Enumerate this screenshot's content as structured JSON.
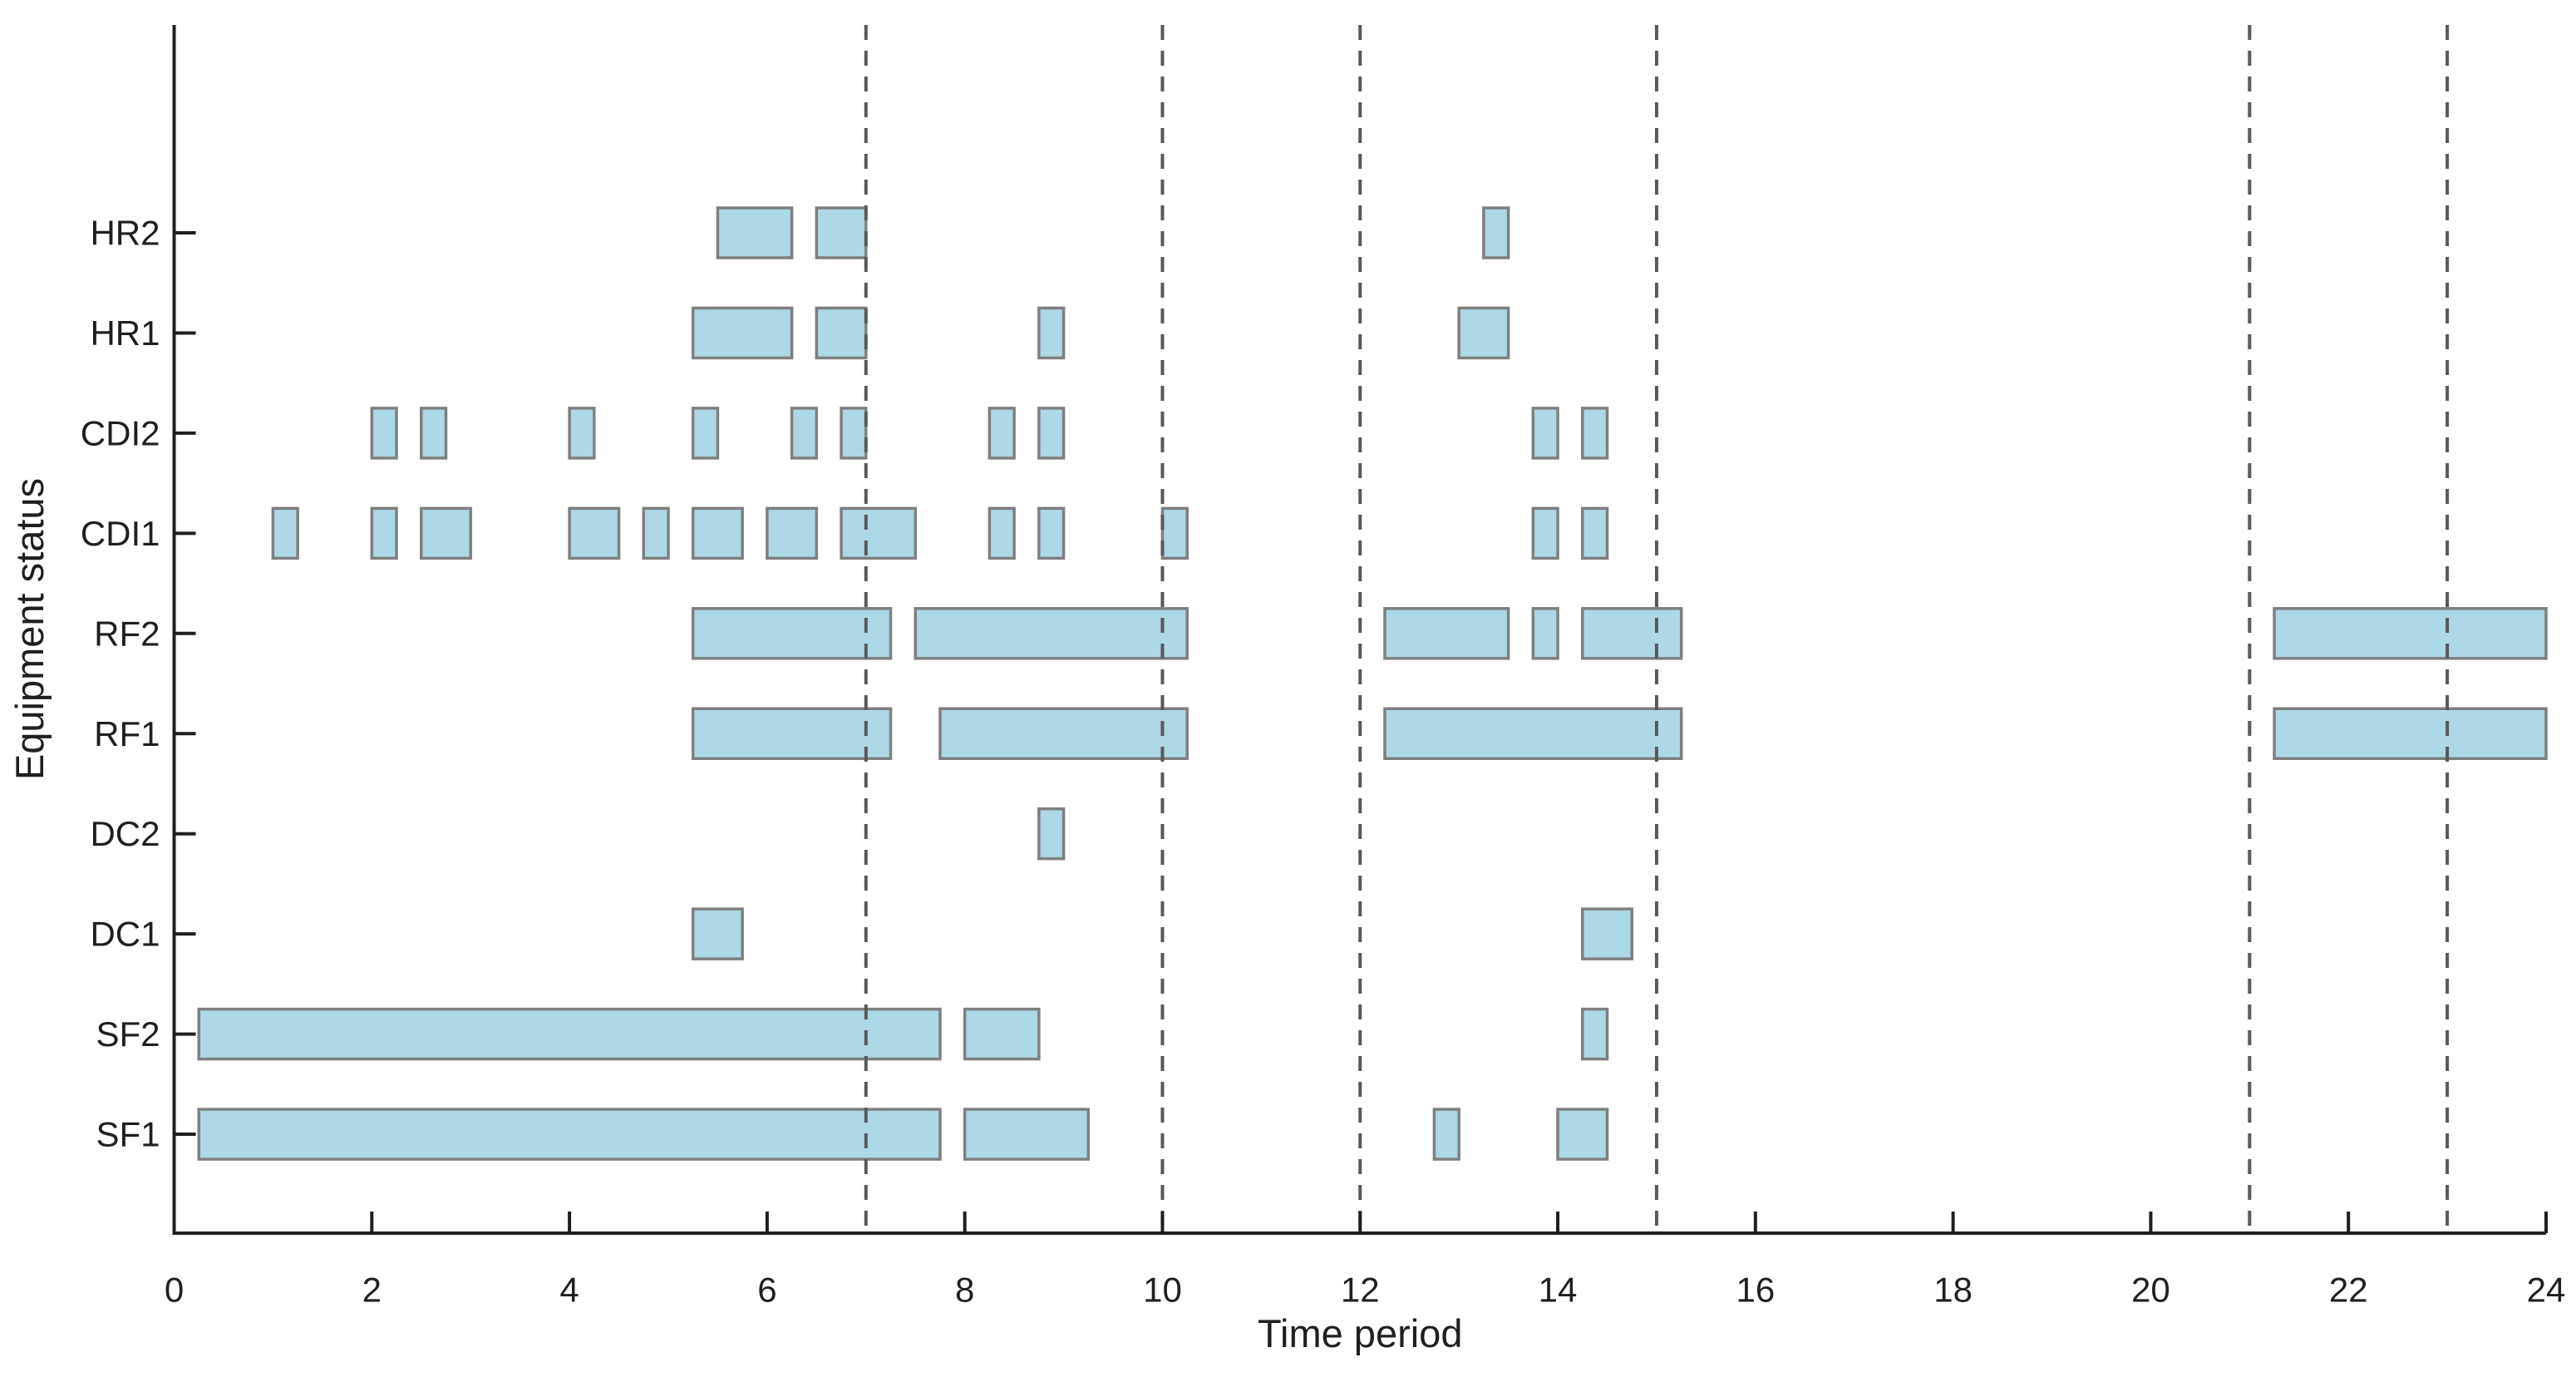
{
  "chart_data": {
    "type": "bar",
    "subtype": "gantt-equipment-schedule",
    "xlabel": "Time period",
    "ylabel": "Equipment status",
    "xlim": [
      0,
      24
    ],
    "x_ticks": [
      0,
      2,
      4,
      6,
      8,
      10,
      12,
      14,
      16,
      18,
      20,
      22,
      24
    ],
    "grid": "off",
    "legend": "none",
    "categories_top_to_bottom": [
      "HR2",
      "HR1",
      "CDI2",
      "CDI1",
      "RF2",
      "RF1",
      "DC2",
      "DC1",
      "SF2",
      "SF1"
    ],
    "dashed_vlines_x": [
      7,
      10,
      12,
      15,
      21,
      23
    ],
    "series": [
      {
        "name": "HR2",
        "intervals": [
          [
            5.5,
            6.25
          ],
          [
            6.5,
            7.0
          ],
          [
            13.25,
            13.5
          ]
        ]
      },
      {
        "name": "HR1",
        "intervals": [
          [
            5.25,
            6.25
          ],
          [
            6.5,
            7.0
          ],
          [
            8.75,
            9.0
          ],
          [
            13.0,
            13.5
          ]
        ]
      },
      {
        "name": "CDI2",
        "intervals": [
          [
            2.0,
            2.25
          ],
          [
            2.5,
            2.75
          ],
          [
            4.0,
            4.25
          ],
          [
            5.25,
            5.5
          ],
          [
            6.25,
            6.5
          ],
          [
            6.75,
            7.0
          ],
          [
            8.25,
            8.5
          ],
          [
            8.75,
            9.0
          ],
          [
            13.75,
            14.0
          ],
          [
            14.25,
            14.5
          ]
        ]
      },
      {
        "name": "CDI1",
        "intervals": [
          [
            1.0,
            1.25
          ],
          [
            2.0,
            2.25
          ],
          [
            2.5,
            3.0
          ],
          [
            4.0,
            4.5
          ],
          [
            4.75,
            5.0
          ],
          [
            5.25,
            5.75
          ],
          [
            6.0,
            6.5
          ],
          [
            6.75,
            7.5
          ],
          [
            8.25,
            8.5
          ],
          [
            8.75,
            9.0
          ],
          [
            10.0,
            10.25
          ],
          [
            13.75,
            14.0
          ],
          [
            14.25,
            14.5
          ]
        ]
      },
      {
        "name": "RF2",
        "intervals": [
          [
            5.25,
            7.25
          ],
          [
            7.5,
            10.25
          ],
          [
            12.25,
            13.5
          ],
          [
            13.75,
            14.0
          ],
          [
            14.25,
            15.25
          ],
          [
            21.25,
            24.0
          ]
        ]
      },
      {
        "name": "RF1",
        "intervals": [
          [
            5.25,
            7.25
          ],
          [
            7.75,
            10.25
          ],
          [
            12.25,
            15.25
          ],
          [
            21.25,
            24.0
          ]
        ]
      },
      {
        "name": "DC2",
        "intervals": [
          [
            8.75,
            9.0
          ]
        ]
      },
      {
        "name": "DC1",
        "intervals": [
          [
            5.25,
            5.75
          ],
          [
            14.25,
            14.75
          ]
        ]
      },
      {
        "name": "SF2",
        "intervals": [
          [
            0.25,
            7.75
          ],
          [
            8.0,
            8.75
          ],
          [
            14.25,
            14.5
          ]
        ]
      },
      {
        "name": "SF1",
        "intervals": [
          [
            0.25,
            7.75
          ],
          [
            8.0,
            9.25
          ],
          [
            12.75,
            13.0
          ],
          [
            14.0,
            14.5
          ]
        ]
      }
    ],
    "colors": {
      "bar_fill": "#add8e6",
      "bar_edge": "#7f7f7f",
      "dashed_line": "#595959",
      "axis": "#1f1f1f",
      "text": "#1f1f1f",
      "background": "#ffffff"
    }
  }
}
